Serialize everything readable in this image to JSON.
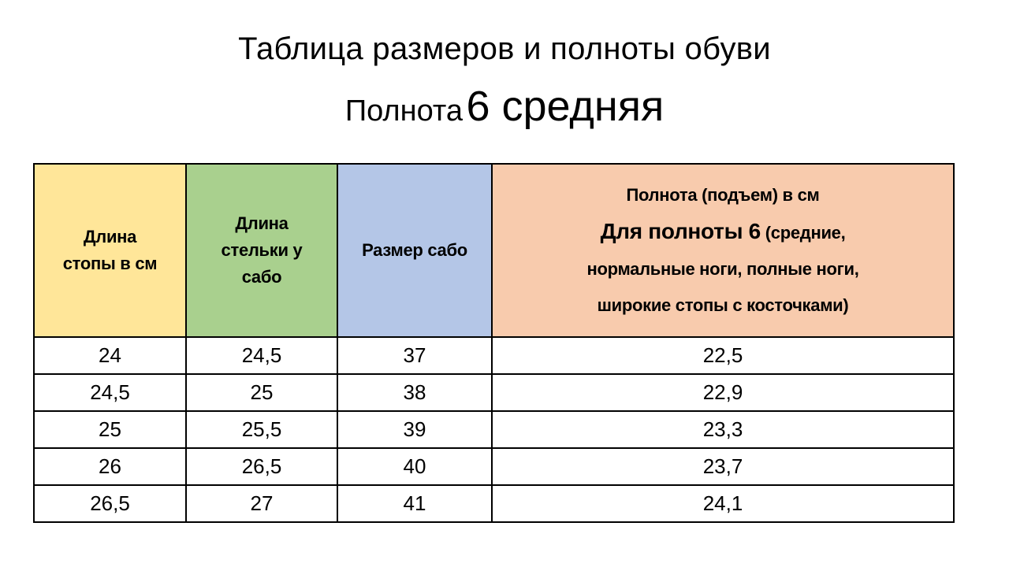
{
  "title": "Таблица размеров и полноты обуви",
  "subtitle": {
    "prefix": "Полнота",
    "emphasis": "6 средняя"
  },
  "table": {
    "headers": [
      "Длина стопы в см",
      "Длина стельки у сабо",
      "Размер  сабо",
      {
        "line1": "Полнота (подъем) в см",
        "line2_bold": "Для полноты 6",
        "line2_rest": " (средние,",
        "line3": "нормальные ноги, полные ноги,",
        "line4": "широкие стопы с косточками)"
      }
    ],
    "header_colors": [
      "#ffe699",
      "#a9d08e",
      "#b4c6e7",
      "#f8cbad"
    ],
    "rows": [
      [
        "24",
        "24,5",
        "37",
        "22,5"
      ],
      [
        "24,5",
        "25",
        "38",
        "22,9"
      ],
      [
        "25",
        "25,5",
        "39",
        "23,3"
      ],
      [
        "26",
        "26,5",
        "40",
        "23,7"
      ],
      [
        "26,5",
        "27",
        "41",
        "24,1"
      ]
    ]
  }
}
